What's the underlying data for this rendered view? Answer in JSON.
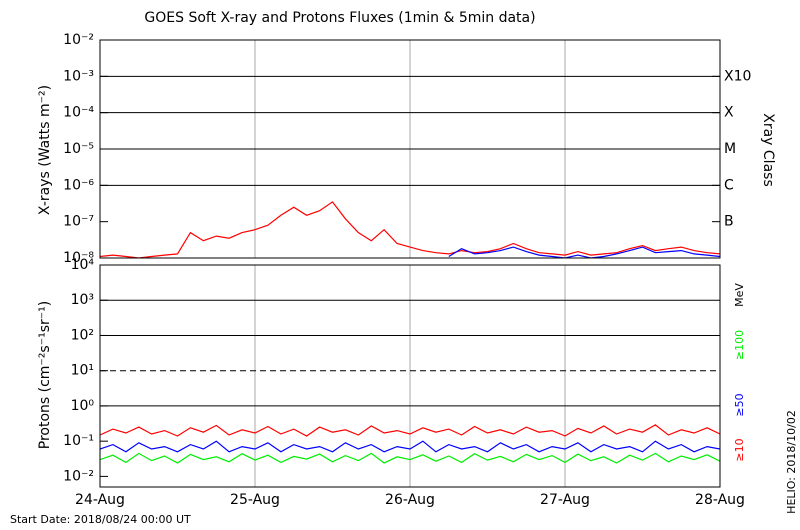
{
  "chart_data": [
    {
      "type": "line",
      "title": "GOES Soft X-ray and Protons Fluxes   (1min & 5min data)",
      "y_label": "X-rays (Watts m⁻²)",
      "y2_label": "Xray Class",
      "log_y": true,
      "grid": true,
      "xlim": [
        0,
        4
      ],
      "xticks": [
        {
          "value": 0,
          "label": "24-Aug"
        },
        {
          "value": 1,
          "label": "25-Aug"
        },
        {
          "value": 2,
          "label": "26-Aug"
        },
        {
          "value": 3,
          "label": "27-Aug"
        },
        {
          "value": 4,
          "label": "28-Aug"
        }
      ],
      "ylim": [
        1e-08,
        0.01
      ],
      "yticks": [
        {
          "value": 1e-08,
          "label": "10⁻⁸"
        },
        {
          "value": 1e-07,
          "label": "10⁻⁷"
        },
        {
          "value": 1e-06,
          "label": "10⁻⁶"
        },
        {
          "value": 1e-05,
          "label": "10⁻⁵"
        },
        {
          "value": 0.0001,
          "label": "10⁻⁴"
        },
        {
          "value": 0.001,
          "label": "10⁻³"
        },
        {
          "value": 0.01,
          "label": "10⁻²"
        }
      ],
      "class_ticks": [
        {
          "value": 1e-07,
          "label": "B"
        },
        {
          "value": 1e-06,
          "label": "C"
        },
        {
          "value": 1e-05,
          "label": "M"
        },
        {
          "value": 0.0001,
          "label": "X"
        },
        {
          "value": 0.001,
          "label": "X10"
        }
      ],
      "x": [
        0,
        0.083,
        0.167,
        0.25,
        0.333,
        0.417,
        0.5,
        0.583,
        0.667,
        0.75,
        0.833,
        0.917,
        1,
        1.083,
        1.167,
        1.25,
        1.333,
        1.417,
        1.5,
        1.583,
        1.667,
        1.75,
        1.833,
        1.917,
        2,
        2.083,
        2.167,
        2.25,
        2.333,
        2.417,
        2.5,
        2.583,
        2.667,
        2.75,
        2.833,
        2.917,
        3,
        3.083,
        3.167,
        3.25,
        3.333,
        3.417,
        3.5,
        3.583,
        3.667,
        3.75,
        3.833,
        3.917,
        4
      ],
      "series": [
        {
          "color": "#ff0000",
          "values": [
            1.1e-08,
            1.2e-08,
            1.1e-08,
            1e-08,
            1.1e-08,
            1.2e-08,
            1.3e-08,
            5e-08,
            3e-08,
            4e-08,
            3.5e-08,
            5e-08,
            6e-08,
            8e-08,
            1.5e-07,
            2.5e-07,
            1.5e-07,
            2e-07,
            3.5e-07,
            1.2e-07,
            5e-08,
            3e-08,
            6e-08,
            2.5e-08,
            2e-08,
            1.6e-08,
            1.4e-08,
            1.3e-08,
            1.6e-08,
            1.4e-08,
            1.5e-08,
            1.8e-08,
            2.5e-08,
            1.8e-08,
            1.4e-08,
            1.3e-08,
            1.2e-08,
            1.5e-08,
            1.2e-08,
            1.3e-08,
            1.4e-08,
            1.8e-08,
            2.2e-08,
            1.6e-08,
            1.8e-08,
            2e-08,
            1.6e-08,
            1.4e-08,
            1.3e-08
          ]
        },
        {
          "color": "#0000ff",
          "values": [
            null,
            null,
            null,
            null,
            null,
            null,
            null,
            null,
            null,
            null,
            null,
            null,
            null,
            null,
            null,
            null,
            null,
            null,
            null,
            null,
            null,
            null,
            null,
            null,
            null,
            null,
            null,
            1.1e-08,
            1.8e-08,
            1.3e-08,
            1.4e-08,
            1.6e-08,
            2e-08,
            1.5e-08,
            1.2e-08,
            1.1e-08,
            1e-08,
            1.2e-08,
            1e-08,
            1.1e-08,
            1.3e-08,
            1.6e-08,
            2e-08,
            1.4e-08,
            1.5e-08,
            1.6e-08,
            1.3e-08,
            1.2e-08,
            1.1e-08
          ]
        }
      ]
    },
    {
      "type": "line",
      "y_label": "Protons (cm⁻²s⁻¹sr⁻¹)",
      "unit_label": "MeV",
      "log_y": true,
      "grid": true,
      "dashed_line": 10,
      "xlim": [
        0,
        4
      ],
      "xticks": [
        {
          "value": 0,
          "label": "24-Aug"
        },
        {
          "value": 1,
          "label": "25-Aug"
        },
        {
          "value": 2,
          "label": "26-Aug"
        },
        {
          "value": 3,
          "label": "27-Aug"
        },
        {
          "value": 4,
          "label": "28-Aug"
        }
      ],
      "ylim": [
        0.005,
        10000
      ],
      "yticks": [
        {
          "value": 0.01,
          "label": "10⁻²"
        },
        {
          "value": 0.1,
          "label": "10⁻¹"
        },
        {
          "value": 1,
          "label": "10⁰"
        },
        {
          "value": 10,
          "label": "10¹"
        },
        {
          "value": 100,
          "label": "10²"
        },
        {
          "value": 1000,
          "label": "10³"
        },
        {
          "value": 10000,
          "label": "10⁴"
        }
      ],
      "x": [
        0,
        0.083,
        0.167,
        0.25,
        0.333,
        0.417,
        0.5,
        0.583,
        0.667,
        0.75,
        0.833,
        0.917,
        1,
        1.083,
        1.167,
        1.25,
        1.333,
        1.417,
        1.5,
        1.583,
        1.667,
        1.75,
        1.833,
        1.917,
        2,
        2.083,
        2.167,
        2.25,
        2.333,
        2.417,
        2.5,
        2.583,
        2.667,
        2.75,
        2.833,
        2.917,
        3,
        3.083,
        3.167,
        3.25,
        3.333,
        3.417,
        3.5,
        3.583,
        3.667,
        3.75,
        3.833,
        3.917,
        4
      ],
      "series": [
        {
          "name": "≥10",
          "color": "#ff0000",
          "values": [
            0.15,
            0.22,
            0.17,
            0.25,
            0.16,
            0.2,
            0.14,
            0.24,
            0.18,
            0.28,
            0.15,
            0.21,
            0.17,
            0.26,
            0.16,
            0.22,
            0.14,
            0.25,
            0.18,
            0.21,
            0.15,
            0.27,
            0.17,
            0.2,
            0.16,
            0.24,
            0.18,
            0.22,
            0.15,
            0.26,
            0.17,
            0.21,
            0.16,
            0.25,
            0.18,
            0.2,
            0.14,
            0.23,
            0.17,
            0.27,
            0.16,
            0.22,
            0.18,
            0.29,
            0.15,
            0.21,
            0.17,
            0.24,
            0.16
          ]
        },
        {
          "name": "≥50",
          "color": "#0000ff",
          "values": [
            0.06,
            0.08,
            0.05,
            0.09,
            0.06,
            0.07,
            0.05,
            0.08,
            0.06,
            0.1,
            0.05,
            0.07,
            0.06,
            0.09,
            0.05,
            0.08,
            0.06,
            0.07,
            0.05,
            0.09,
            0.06,
            0.08,
            0.05,
            0.07,
            0.06,
            0.1,
            0.05,
            0.08,
            0.06,
            0.07,
            0.05,
            0.09,
            0.06,
            0.08,
            0.05,
            0.07,
            0.06,
            0.09,
            0.05,
            0.08,
            0.06,
            0.07,
            0.05,
            0.1,
            0.06,
            0.08,
            0.05,
            0.07,
            0.06
          ]
        },
        {
          "name": "≥100",
          "color": "#00ee00",
          "values": [
            0.03,
            0.04,
            0.025,
            0.045,
            0.028,
            0.038,
            0.024,
            0.042,
            0.03,
            0.036,
            0.026,
            0.044,
            0.029,
            0.04,
            0.025,
            0.037,
            0.031,
            0.043,
            0.026,
            0.039,
            0.028,
            0.045,
            0.024,
            0.036,
            0.03,
            0.041,
            0.027,
            0.038,
            0.025,
            0.044,
            0.029,
            0.037,
            0.026,
            0.042,
            0.03,
            0.039,
            0.025,
            0.043,
            0.028,
            0.036,
            0.024,
            0.04,
            0.029,
            0.045,
            0.026,
            0.038,
            0.03,
            0.041,
            0.027
          ]
        }
      ]
    }
  ],
  "footer": {
    "start_date": "Start Date: 2018/08/24 00:00 UT",
    "credit": "HELIO: 2018/10/02"
  }
}
